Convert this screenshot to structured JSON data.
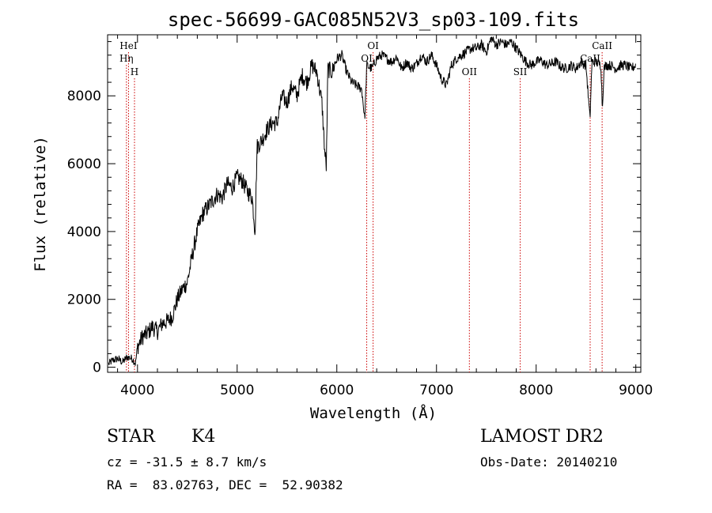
{
  "chart_data": {
    "type": "line",
    "title": "spec-56699-GAC085N52V3_sp03-109.fits",
    "xlabel": "Wavelength (Å)",
    "ylabel": "Flux (relative)",
    "xlim": [
      3700,
      9050
    ],
    "ylim": [
      -150,
      9800
    ],
    "xticks": [
      4000,
      5000,
      6000,
      7000,
      8000,
      9000
    ],
    "yticks": [
      0,
      2000,
      4000,
      6000,
      8000
    ],
    "line_color": "#000000",
    "marker_color": "#cc0000",
    "grid": false,
    "series": [
      {
        "x": [
          3710,
          3750,
          3800,
          3850,
          3900,
          3950,
          3980,
          4000,
          4050,
          4100,
          4150,
          4200,
          4250,
          4300,
          4350,
          4400,
          4450,
          4500,
          4550,
          4600,
          4650,
          4700,
          4750,
          4800,
          4850,
          4900,
          4950,
          5000,
          5050,
          5100,
          5150,
          5180,
          5200,
          5250,
          5300,
          5350,
          5400,
          5450,
          5500,
          5550,
          5600,
          5650,
          5700,
          5750,
          5800,
          5850,
          5880,
          5895,
          5910,
          5950,
          6000,
          6050,
          6100,
          6150,
          6200,
          6250,
          6280,
          6300,
          6350,
          6400,
          6450,
          6500,
          6550,
          6600,
          6650,
          6700,
          6750,
          6800,
          6850,
          6900,
          6950,
          7000,
          7050,
          7100,
          7150,
          7200,
          7250,
          7300,
          7350,
          7400,
          7450,
          7500,
          7550,
          7600,
          7650,
          7700,
          7750,
          7800,
          7850,
          7900,
          7950,
          8000,
          8050,
          8100,
          8150,
          8200,
          8250,
          8300,
          8350,
          8400,
          8450,
          8500,
          8540,
          8560,
          8600,
          8650,
          8665,
          8680,
          8700,
          8750,
          8800,
          8850,
          8900,
          8950,
          9000
        ],
        "y": [
          100,
          200,
          250,
          150,
          300,
          250,
          100,
          600,
          900,
          1000,
          1200,
          1050,
          1300,
          1350,
          1500,
          2000,
          2300,
          2500,
          3300,
          4000,
          4500,
          4700,
          4900,
          5100,
          5000,
          5400,
          5300,
          5600,
          5500,
          5200,
          5000,
          4000,
          6500,
          6700,
          7000,
          7200,
          7200,
          8000,
          7800,
          8300,
          8000,
          8600,
          8400,
          8900,
          8700,
          7800,
          6300,
          5900,
          8800,
          8700,
          9100,
          9200,
          8700,
          8400,
          8300,
          8200,
          7300,
          8900,
          8800,
          9100,
          9200,
          9100,
          9000,
          9150,
          8800,
          9000,
          8800,
          8950,
          9200,
          9000,
          9200,
          8900,
          8500,
          8300,
          8900,
          9100,
          9200,
          9300,
          9400,
          9400,
          9500,
          9300,
          9700,
          9500,
          9600,
          9500,
          9600,
          9400,
          9200,
          9000,
          8900,
          9000,
          9050,
          8900,
          8950,
          9000,
          8850,
          8800,
          8900,
          8800,
          9000,
          8900,
          7300,
          9000,
          9000,
          8900,
          7600,
          8800,
          8900,
          8900,
          8800,
          8900,
          8900,
          8800,
          8900
        ]
      }
    ],
    "lines": [
      {
        "label": "Hη",
        "x": 3889,
        "label_row": 1
      },
      {
        "label": "HeI",
        "x": 3910,
        "label_row": 0
      },
      {
        "label": "H",
        "x": 3970,
        "label_row": 2
      },
      {
        "label": "OI",
        "x": 6300,
        "label_row": 1
      },
      {
        "label": "OI",
        "x": 6364,
        "label_row": 0
      },
      {
        "label": "OII",
        "x": 7330,
        "label_row": 2
      },
      {
        "label": "SII",
        "x": 7840,
        "label_row": 2
      },
      {
        "label": "CaII",
        "x": 8542,
        "label_row": 1
      },
      {
        "label": "CaII",
        "x": 8662,
        "label_row": 0
      }
    ]
  },
  "info": {
    "object_class": "STAR",
    "subclass": "K4",
    "survey": "LAMOST DR2",
    "cz": "cz = -31.5 ± 8.7 km/s",
    "obs_date": "Obs-Date: 20140210",
    "coords": "RA =  83.02763, DEC =  52.90382"
  }
}
